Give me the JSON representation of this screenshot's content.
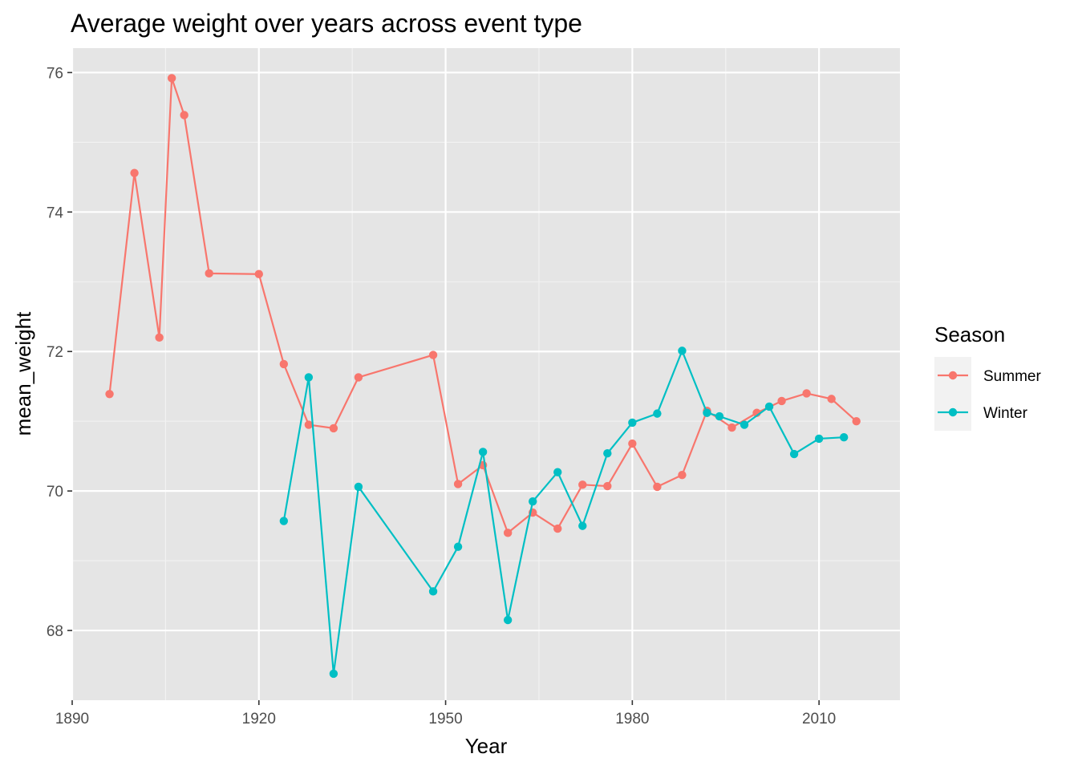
{
  "chart_data": {
    "type": "line",
    "title": "Average weight over years across event type",
    "xlabel": "Year",
    "ylabel": "mean_weight",
    "xlim": [
      1890,
      2023
    ],
    "ylim": [
      67.0,
      76.35
    ],
    "x_ticks": [
      1890,
      1920,
      1950,
      1980,
      2010
    ],
    "y_ticks": [
      68,
      70,
      72,
      74,
      76
    ],
    "grid": true,
    "legend": {
      "title": "Season",
      "position": "right"
    },
    "series": [
      {
        "name": "Summer",
        "color": "#F8766D",
        "points": [
          [
            1896,
            71.39
          ],
          [
            1900,
            74.56
          ],
          [
            1904,
            72.2
          ],
          [
            1906,
            75.92
          ],
          [
            1908,
            75.39
          ],
          [
            1912,
            73.12
          ],
          [
            1920,
            73.11
          ],
          [
            1924,
            71.82
          ],
          [
            1928,
            70.95
          ],
          [
            1932,
            70.9
          ],
          [
            1936,
            71.63
          ],
          [
            1948,
            71.95
          ],
          [
            1952,
            70.1
          ],
          [
            1956,
            70.37
          ],
          [
            1960,
            69.4
          ],
          [
            1964,
            69.69
          ],
          [
            1968,
            69.46
          ],
          [
            1972,
            70.09
          ],
          [
            1976,
            70.07
          ],
          [
            1980,
            70.68
          ],
          [
            1984,
            70.06
          ],
          [
            1988,
            70.23
          ],
          [
            1992,
            71.15
          ],
          [
            1996,
            70.91
          ],
          [
            2000,
            71.12
          ],
          [
            2004,
            71.29
          ],
          [
            2008,
            71.4
          ],
          [
            2012,
            71.32
          ],
          [
            2016,
            71.0
          ]
        ]
      },
      {
        "name": "Winter",
        "color": "#00BFC4",
        "points": [
          [
            1924,
            69.57
          ],
          [
            1928,
            71.63
          ],
          [
            1932,
            67.38
          ],
          [
            1936,
            70.06
          ],
          [
            1948,
            68.56
          ],
          [
            1952,
            69.2
          ],
          [
            1956,
            70.56
          ],
          [
            1960,
            68.15
          ],
          [
            1964,
            69.85
          ],
          [
            1968,
            70.27
          ],
          [
            1972,
            69.5
          ],
          [
            1976,
            70.54
          ],
          [
            1980,
            70.98
          ],
          [
            1984,
            71.11
          ],
          [
            1988,
            72.01
          ],
          [
            1992,
            71.12
          ],
          [
            1994,
            71.07
          ],
          [
            1998,
            70.95
          ],
          [
            2002,
            71.21
          ],
          [
            2006,
            70.53
          ],
          [
            2010,
            70.75
          ],
          [
            2014,
            70.77
          ]
        ]
      }
    ]
  }
}
